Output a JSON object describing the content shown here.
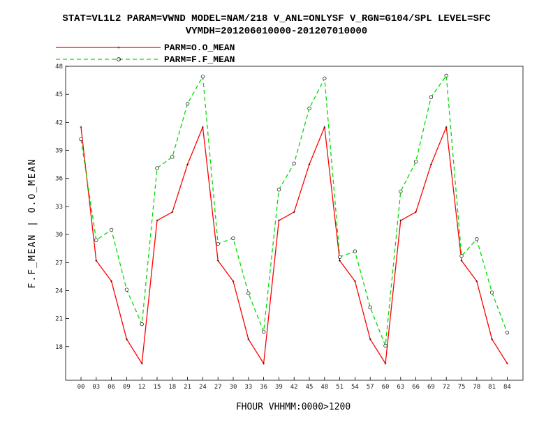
{
  "chart_data": {
    "type": "line",
    "title_line1": "STAT=VL1L2 PARAM=VWND MODEL=NAM/218 V_ANL=ONLYSF V_RGN=G104/SPL LEVEL=SFC",
    "title_line2": "VYMDH=201206010000-201207010000",
    "xlabel": "FHOUR VHHMM:0000>1200",
    "ylabel": "F.F_MEAN | O.O_MEAN",
    "ylim": [
      14.4,
      48
    ],
    "yticks": [
      18,
      21,
      24,
      27,
      30,
      33,
      36,
      39,
      42,
      45,
      48
    ],
    "ytick_labels": [
      "18",
      "21",
      "24",
      "27",
      "30",
      "33",
      "36",
      "39",
      "42",
      "45",
      "48"
    ],
    "x": [
      "00",
      "03",
      "06",
      "09",
      "12",
      "15",
      "18",
      "21",
      "24",
      "27",
      "30",
      "33",
      "36",
      "39",
      "42",
      "45",
      "48",
      "51",
      "54",
      "57",
      "60",
      "63",
      "66",
      "69",
      "72",
      "75",
      "78",
      "81",
      "84"
    ],
    "grid": false,
    "legend_position": "top-left",
    "series": [
      {
        "name": "PARM=O.O_MEAN",
        "color": "#ff0000",
        "style": "solid",
        "marker": "plus",
        "values": [
          41.5,
          27.2,
          25.0,
          18.8,
          16.2,
          31.5,
          32.4,
          37.5,
          41.5,
          27.2,
          25.0,
          18.8,
          16.2,
          31.5,
          32.4,
          37.5,
          41.5,
          27.2,
          25.0,
          18.8,
          16.2,
          31.5,
          32.4,
          37.5,
          41.5,
          27.2,
          25.0,
          18.8,
          16.2
        ]
      },
      {
        "name": "PARM=F.F_MEAN",
        "color": "#00dd00",
        "style": "dashed",
        "marker": "circle",
        "values": [
          40.2,
          29.4,
          30.5,
          24.1,
          20.4,
          37.1,
          38.3,
          44.0,
          46.9,
          29.0,
          29.6,
          23.7,
          19.6,
          34.8,
          37.6,
          43.5,
          46.7,
          27.6,
          28.2,
          22.2,
          18.1,
          34.6,
          37.8,
          44.7,
          47.0,
          27.7,
          29.5,
          23.8,
          19.5
        ]
      }
    ]
  }
}
